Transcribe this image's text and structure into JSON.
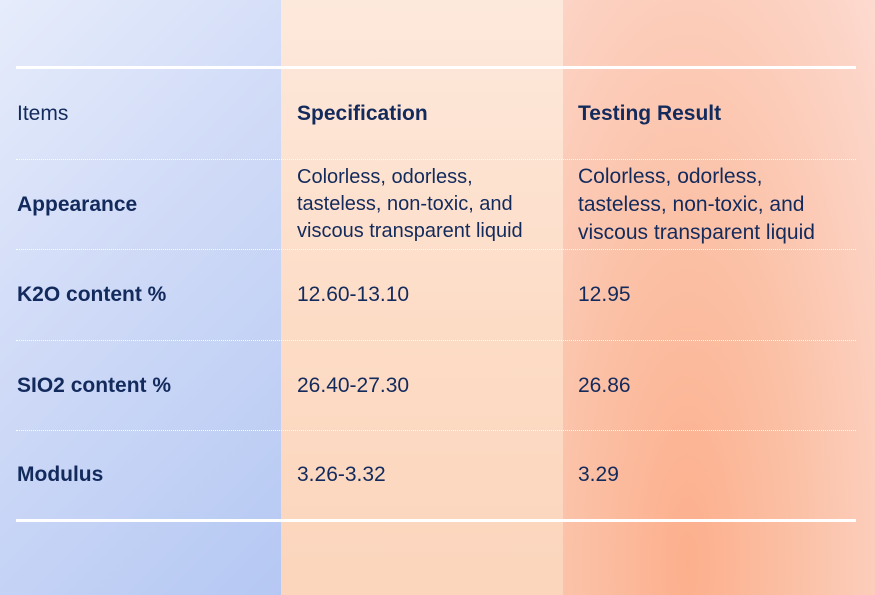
{
  "table": {
    "headers": {
      "items": "Items",
      "specification": "Specification",
      "testing_result": "Testing Result"
    },
    "rows": [
      {
        "item": "Appearance",
        "specification": "Colorless, odorless,\ntasteless, non-toxic, and\nviscous transparent liquid",
        "result": "Colorless, odorless,\ntasteless, non-toxic, and\nviscous transparent liquid"
      },
      {
        "item": "K2O content %",
        "specification": "12.60-13.10",
        "result": "12.95"
      },
      {
        "item": "SIO2 content %",
        "specification": "26.40-27.30",
        "result": "26.86"
      },
      {
        "item": "Modulus",
        "specification": "3.26-3.32",
        "result": "3.29"
      }
    ]
  },
  "colors": {
    "text": "#132a5c",
    "rule": "#ffffff",
    "column_1": "#cfdaf7",
    "column_2": "#fddcc6",
    "column_3": "#fbc2a8"
  }
}
